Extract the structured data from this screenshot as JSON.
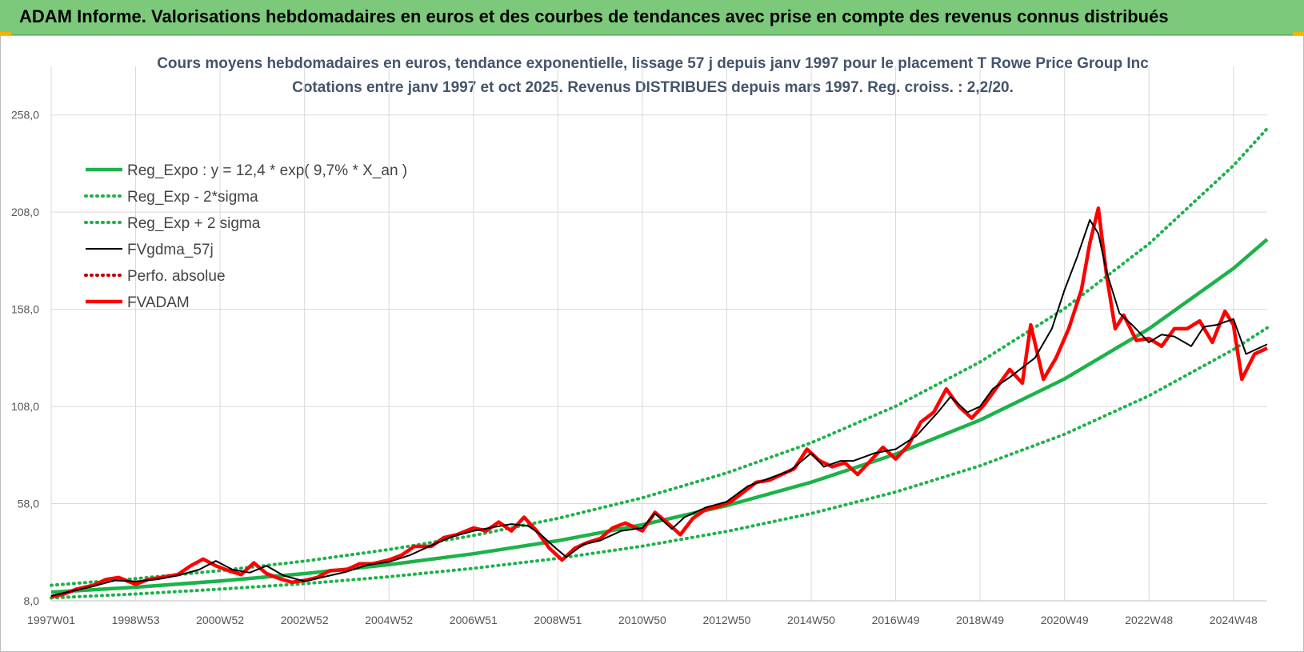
{
  "header": {
    "title": "ADAM Informe. Valorisations hebdomadaires en euros et des courbes de tendances avec prise en compte des revenus connus distribués"
  },
  "colors": {
    "banner": "#7dc97b",
    "reg_expo": "#1db24a",
    "sigma": "#1db24a",
    "fvgdma": "#000000",
    "perfo": "#c00000",
    "fvadam": "#ff0000",
    "subtitle": "#44546a"
  },
  "chart_data": {
    "type": "line",
    "title_line1": "Cours moyens hebdomadaires en euros, tendance exponentielle, lissage 57 j depuis janv 1997 pour le placement T Rowe Price Group Inc",
    "title_line2": "Cotations entre janv 1997 et oct 2025. Revenus DISTRIBUES depuis mars 1997.  Reg. croiss. : 2,2/20.",
    "x_range": [
      1997.0,
      2025.8
    ],
    "ylim": [
      8.0,
      283.0
    ],
    "y_ticks": [
      "258,0",
      "208,0",
      "158,0",
      "108,0",
      "58,0",
      "8,0"
    ],
    "y_tick_values": [
      258,
      208,
      158,
      108,
      58,
      8
    ],
    "x_ticks": [
      "1997W01",
      "1998W53",
      "2000W52",
      "2002W52",
      "2004W52",
      "2006W51",
      "2008W51",
      "2010W50",
      "2012W50",
      "2014W50",
      "2016W49",
      "2018W49",
      "2020W49",
      "2022W48",
      "2024W48"
    ],
    "x_tick_values": [
      1997.0,
      1999.0,
      2001.0,
      2003.0,
      2005.0,
      2007.0,
      2009.0,
      2011.0,
      2013.0,
      2015.0,
      2017.0,
      2019.0,
      2021.0,
      2023.0,
      2025.0
    ],
    "grid": true,
    "legend_position": "top-left",
    "legend": [
      {
        "label": "Reg_Expo : y = 12,4 * exp( 9,7% *  X_an )",
        "style": "solid-thick",
        "color": "#1db24a"
      },
      {
        "label": "Reg_Exp - 2*sigma",
        "style": "dotted",
        "color": "#1db24a"
      },
      {
        "label": "Reg_Exp + 2 sigma",
        "style": "dotted",
        "color": "#1db24a"
      },
      {
        "label": "FVgdma_57j",
        "style": "solid",
        "color": "#000000"
      },
      {
        "label": "Perfo. absolue",
        "style": "dotted",
        "color": "#c00000"
      },
      {
        "label": "FVADAM",
        "style": "solid-thick",
        "color": "#ff0000"
      }
    ],
    "series": [
      {
        "name": "Reg_Expo : y = 12,4 * exp( 9,7% *  X_an )",
        "x": [
          1997,
          1999,
          2001,
          2003,
          2005,
          2007,
          2009,
          2011,
          2013,
          2015,
          2017,
          2019,
          2021,
          2023,
          2025,
          2025.8
        ],
        "y": [
          12.4,
          15.0,
          18.2,
          22.0,
          26.6,
          32.2,
          38.9,
          47.1,
          57.0,
          69.0,
          83.5,
          101.0,
          122.2,
          148.0,
          179.0,
          194.0
        ]
      },
      {
        "name": "Reg_Exp - 2*sigma",
        "x": [
          1997,
          1999,
          2001,
          2003,
          2005,
          2007,
          2009,
          2011,
          2013,
          2015,
          2017,
          2019,
          2021,
          2023,
          2025,
          2025.8
        ],
        "y": [
          9.5,
          11.5,
          14.0,
          16.8,
          20.4,
          24.7,
          29.8,
          36.1,
          43.7,
          52.9,
          64.0,
          77.5,
          93.7,
          113.5,
          137.3,
          148.5
        ]
      },
      {
        "name": "Reg_Exp + 2 sigma",
        "x": [
          1997,
          1999,
          2001,
          2003,
          2005,
          2007,
          2009,
          2011,
          2013,
          2015,
          2017,
          2019,
          2021,
          2023,
          2025,
          2025.8
        ],
        "y": [
          16.0,
          19.4,
          23.5,
          28.4,
          34.4,
          41.6,
          50.4,
          61.0,
          73.8,
          89.3,
          108.1,
          130.9,
          158.4,
          191.7,
          232.0,
          251.0
        ]
      },
      {
        "name": "FVgdma_57j",
        "x": [
          1997.0,
          1997.5,
          1998.0,
          1998.5,
          1999.0,
          1999.5,
          2000.0,
          2000.5,
          2000.9,
          2001.3,
          2001.7,
          2002.1,
          2002.5,
          2003.0,
          2003.5,
          2004.0,
          2004.5,
          2005.0,
          2005.5,
          2006.0,
          2006.5,
          2007.0,
          2007.5,
          2007.9,
          2008.3,
          2008.6,
          2008.9,
          2009.2,
          2009.6,
          2010.0,
          2010.5,
          2011.0,
          2011.3,
          2011.7,
          2012.0,
          2012.5,
          2013.0,
          2013.5,
          2014.0,
          2014.5,
          2015.0,
          2015.3,
          2015.7,
          2016.0,
          2016.5,
          2017.0,
          2017.5,
          2018.0,
          2018.3,
          2018.7,
          2019.0,
          2019.3,
          2019.7,
          2020.0,
          2020.3,
          2020.7,
          2021.0,
          2021.3,
          2021.6,
          2021.8,
          2022.0,
          2022.3,
          2022.6,
          2023.0,
          2023.3,
          2023.6,
          2024.0,
          2024.3,
          2024.6,
          2025.0,
          2025.3,
          2025.8
        ],
        "y": [
          10.5,
          13.0,
          15.5,
          18.5,
          18.0,
          19.0,
          21.0,
          24.0,
          28.5,
          24.0,
          22.5,
          26.0,
          21.0,
          18.0,
          20.5,
          23.0,
          26.5,
          28.0,
          31.5,
          36.5,
          41.0,
          44.0,
          46.0,
          47.5,
          46.5,
          42.0,
          36.0,
          30.5,
          37.0,
          39.0,
          44.0,
          45.5,
          53.0,
          45.0,
          51.0,
          56.0,
          59.0,
          67.0,
          71.0,
          75.0,
          84.0,
          77.0,
          80.0,
          80.0,
          84.0,
          86.0,
          93.0,
          105.0,
          113.0,
          105.0,
          108.0,
          117.0,
          123.0,
          128.0,
          133.0,
          148.0,
          168.0,
          185.0,
          204.0,
          197.0,
          177.0,
          156.0,
          150.0,
          141.0,
          145.0,
          144.0,
          139.0,
          149.0,
          150.0,
          153.0,
          135.0,
          140.0
        ]
      },
      {
        "name": "FVADAM",
        "x": [
          1997.0,
          1997.3,
          1997.6,
          1998.0,
          1998.3,
          1998.6,
          1999.0,
          1999.3,
          1999.6,
          2000.0,
          2000.3,
          2000.6,
          2000.9,
          2001.2,
          2001.5,
          2001.8,
          2002.1,
          2002.4,
          2002.7,
          2003.0,
          2003.3,
          2003.6,
          2004.0,
          2004.3,
          2004.6,
          2005.0,
          2005.3,
          2005.6,
          2006.0,
          2006.3,
          2006.6,
          2007.0,
          2007.3,
          2007.6,
          2007.9,
          2008.2,
          2008.5,
          2008.8,
          2009.1,
          2009.4,
          2009.7,
          2010.0,
          2010.3,
          2010.6,
          2011.0,
          2011.3,
          2011.6,
          2011.9,
          2012.2,
          2012.5,
          2012.8,
          2013.1,
          2013.4,
          2013.7,
          2014.0,
          2014.3,
          2014.6,
          2014.9,
          2015.2,
          2015.5,
          2015.8,
          2016.1,
          2016.4,
          2016.7,
          2017.0,
          2017.3,
          2017.6,
          2017.9,
          2018.2,
          2018.5,
          2018.8,
          2019.1,
          2019.4,
          2019.7,
          2020.0,
          2020.2,
          2020.5,
          2020.8,
          2021.1,
          2021.4,
          2021.6,
          2021.8,
          2022.0,
          2022.2,
          2022.4,
          2022.7,
          2023.0,
          2023.3,
          2023.6,
          2023.9,
          2024.2,
          2024.5,
          2024.8,
          2025.0,
          2025.2,
          2025.5,
          2025.8
        ],
        "y": [
          10.0,
          11.5,
          14.0,
          16.0,
          19.0,
          20.0,
          16.5,
          19.0,
          20.0,
          21.5,
          26.0,
          29.5,
          26.0,
          23.5,
          21.5,
          27.5,
          22.0,
          19.5,
          17.5,
          18.5,
          20.0,
          23.5,
          24.0,
          27.0,
          27.0,
          29.0,
          31.5,
          36.0,
          36.0,
          40.5,
          42.0,
          45.5,
          44.0,
          48.5,
          44.0,
          51.0,
          44.0,
          35.0,
          29.0,
          35.0,
          38.0,
          40.0,
          45.5,
          48.0,
          44.0,
          53.5,
          48.0,
          42.0,
          50.5,
          55.0,
          56.5,
          59.0,
          64.0,
          69.0,
          70.0,
          73.0,
          76.0,
          86.0,
          80.0,
          77.0,
          79.0,
          73.0,
          80.0,
          87.0,
          81.0,
          88.0,
          100.0,
          105.0,
          117.0,
          108.0,
          102.0,
          109.0,
          118.0,
          127.0,
          120.0,
          150.0,
          122.0,
          133.0,
          148.0,
          168.0,
          192.0,
          210.0,
          175.0,
          148.0,
          155.0,
          142.0,
          143.0,
          139.0,
          148.0,
          148.0,
          152.0,
          141.0,
          157.0,
          150.0,
          122.0,
          135.0,
          138.0
        ]
      }
    ]
  }
}
